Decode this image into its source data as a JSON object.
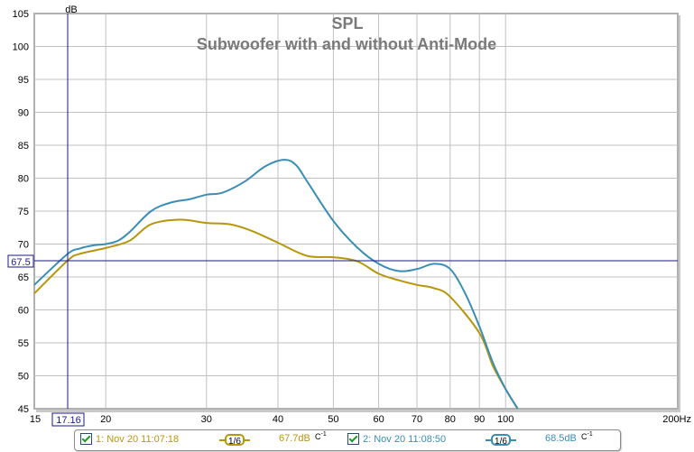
{
  "chart_data": {
    "type": "line",
    "title": "SPL",
    "subtitle": "Subwoofer with and without Anti-Mode",
    "xlabel": "Hz",
    "ylabel": "dB",
    "xscale": "log",
    "xlim": [
      15,
      200
    ],
    "ylim": [
      45,
      105
    ],
    "x_ticks": [
      "15",
      "20",
      "30",
      "40",
      "50",
      "60",
      "70",
      "80",
      "90",
      "100",
      "200Hz"
    ],
    "y_ticks": [
      "45",
      "50",
      "55",
      "60",
      "65",
      "70",
      "75",
      "80",
      "85",
      "90",
      "95",
      "100",
      "105"
    ],
    "y_unit_label": "dB",
    "grid": true,
    "cursor": {
      "x_label": "17.16",
      "y_label": "67.5"
    },
    "series": [
      {
        "name": "1: Nov 20 11:07:18",
        "color": "#b8960c",
        "smoothing": "1/6",
        "level": "67.7dB",
        "x": [
          15,
          17.16,
          18,
          20,
          22,
          24,
          27,
          30,
          33,
          36,
          40,
          45,
          50,
          55,
          60,
          65,
          70,
          75,
          80,
          90,
          95,
          100,
          105
        ],
        "values": [
          62.5,
          67.5,
          68.5,
          69.4,
          70.5,
          73,
          73.7,
          73.2,
          73,
          72,
          70.2,
          68.2,
          68,
          67.4,
          65.5,
          64.5,
          63.8,
          63.3,
          62,
          56.5,
          51.5,
          48,
          45
        ]
      },
      {
        "name": "2: Nov 20 11:08:50",
        "color": "#3a8db5",
        "smoothing": "1/6",
        "level": "68.5dB",
        "x": [
          15,
          17.16,
          18,
          19,
          20,
          21,
          22,
          24,
          26,
          28,
          30,
          32,
          35,
          38,
          41,
          43,
          45,
          50,
          55,
          60,
          65,
          70,
          75,
          80,
          85,
          90,
          95,
          100,
          105
        ],
        "values": [
          63.8,
          68.5,
          69.3,
          69.8,
          70,
          70.5,
          71.8,
          75,
          76.3,
          76.8,
          77.5,
          77.8,
          79.5,
          81.8,
          82.8,
          82,
          79.5,
          73.5,
          69.5,
          67,
          65.9,
          66.2,
          67,
          66.2,
          62.5,
          57.5,
          52,
          48,
          45
        ]
      }
    ]
  },
  "legend": {
    "items": [
      {
        "label": "1: Nov 20 11:07:18",
        "smoothing": "1/6",
        "level": "67.7dB",
        "weighting": "C",
        "color": "#b8960c"
      },
      {
        "label": "2: Nov 20 11:08:50",
        "smoothing": "1/6",
        "level": "68.5dB",
        "weighting": "C",
        "color": "#3a8db5"
      }
    ]
  }
}
